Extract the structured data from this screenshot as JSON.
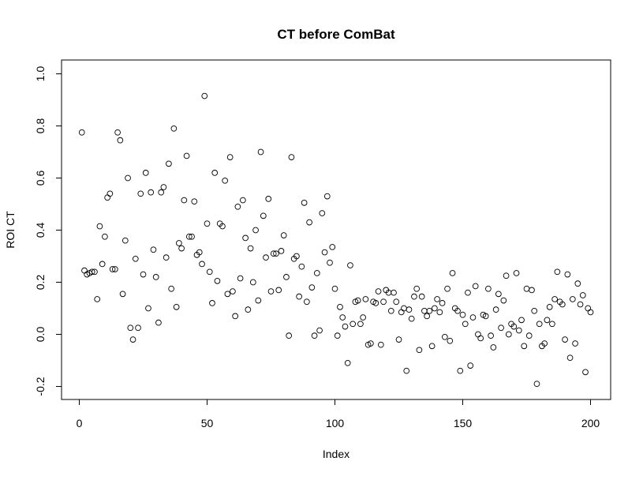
{
  "chart_data": {
    "type": "scatter",
    "title": "CT before ComBat",
    "xlabel": "Index",
    "ylabel": "ROI CT",
    "xlim": [
      0,
      200
    ],
    "ylim": [
      -0.2,
      1.0
    ],
    "x_ticks": [
      0,
      50,
      100,
      150,
      200
    ],
    "x_tick_labels": [
      "0",
      "50",
      "100",
      "150",
      "200"
    ],
    "y_ticks": [
      -0.2,
      0.0,
      0.2,
      0.4,
      0.6,
      0.8,
      1.0
    ],
    "y_tick_labels": [
      "-0.2",
      "0.0",
      "0.2",
      "0.4",
      "0.6",
      "0.8",
      "1.0"
    ],
    "grid": false,
    "legend": "none",
    "marker": "open-circle",
    "x": [
      1,
      2,
      3,
      4,
      5,
      6,
      7,
      8,
      9,
      10,
      11,
      12,
      13,
      14,
      15,
      16,
      17,
      18,
      19,
      20,
      21,
      22,
      23,
      24,
      25,
      26,
      27,
      28,
      29,
      30,
      31,
      32,
      33,
      34,
      35,
      36,
      37,
      38,
      39,
      40,
      41,
      42,
      43,
      44,
      45,
      46,
      47,
      48,
      49,
      50,
      51,
      52,
      53,
      54,
      55,
      56,
      57,
      58,
      59,
      60,
      61,
      62,
      63,
      64,
      65,
      66,
      67,
      68,
      69,
      70,
      71,
      72,
      73,
      74,
      75,
      76,
      77,
      78,
      79,
      80,
      81,
      82,
      83,
      84,
      85,
      86,
      87,
      88,
      89,
      90,
      91,
      92,
      93,
      94,
      95,
      96,
      97,
      98,
      99,
      100,
      101,
      102,
      103,
      104,
      105,
      106,
      107,
      108,
      109,
      110,
      111,
      112,
      113,
      114,
      115,
      116,
      117,
      118,
      119,
      120,
      121,
      122,
      123,
      124,
      125,
      126,
      127,
      128,
      129,
      130,
      131,
      132,
      133,
      134,
      135,
      136,
      137,
      138,
      139,
      140,
      141,
      142,
      143,
      144,
      145,
      146,
      147,
      148,
      149,
      150,
      151,
      152,
      153,
      154,
      155,
      156,
      157,
      158,
      159,
      160,
      161,
      162,
      163,
      164,
      165,
      166,
      167,
      168,
      169,
      170,
      171,
      172,
      173,
      174,
      175,
      176,
      177,
      178,
      179,
      180,
      181,
      182,
      183,
      184,
      185,
      186,
      187,
      188,
      189,
      190,
      191,
      192,
      193,
      194,
      195,
      196,
      197,
      198,
      199,
      200
    ],
    "y": [
      0.775,
      0.245,
      0.23,
      0.235,
      0.24,
      0.24,
      0.135,
      0.415,
      0.27,
      0.375,
      0.525,
      0.54,
      0.25,
      0.25,
      0.775,
      0.745,
      0.155,
      0.36,
      0.6,
      0.025,
      -0.02,
      0.29,
      0.025,
      0.54,
      0.23,
      0.62,
      0.1,
      0.545,
      0.325,
      0.22,
      0.045,
      0.545,
      0.565,
      0.295,
      0.655,
      0.175,
      0.79,
      0.105,
      0.35,
      0.33,
      0.515,
      0.685,
      0.375,
      0.375,
      0.51,
      0.305,
      0.315,
      0.27,
      0.915,
      0.425,
      0.24,
      0.12,
      0.62,
      0.205,
      0.425,
      0.415,
      0.59,
      0.155,
      0.68,
      0.165,
      0.07,
      0.49,
      0.215,
      0.515,
      0.37,
      0.095,
      0.33,
      0.2,
      0.4,
      0.13,
      0.7,
      0.455,
      0.295,
      0.52,
      0.165,
      0.31,
      0.31,
      0.17,
      0.32,
      0.38,
      0.22,
      -0.005,
      0.68,
      0.29,
      0.3,
      0.145,
      0.26,
      0.505,
      0.125,
      0.43,
      0.18,
      -0.005,
      0.235,
      0.015,
      0.465,
      0.315,
      0.53,
      0.275,
      0.335,
      0.175,
      -0.005,
      0.105,
      0.065,
      0.03,
      -0.11,
      0.265,
      0.04,
      0.125,
      0.13,
      0.04,
      0.065,
      0.135,
      -0.04,
      -0.035,
      0.125,
      0.12,
      0.165,
      -0.04,
      0.125,
      0.17,
      0.16,
      0.09,
      0.16,
      0.125,
      -0.02,
      0.085,
      0.1,
      -0.14,
      0.095,
      0.06,
      0.145,
      0.175,
      -0.06,
      0.145,
      0.09,
      0.07,
      0.09,
      -0.045,
      0.1,
      0.135,
      0.085,
      0.12,
      -0.01,
      0.175,
      -0.025,
      0.235,
      0.1,
      0.09,
      -0.14,
      0.075,
      0.04,
      0.16,
      -0.12,
      0.065,
      0.185,
      0.0,
      -0.015,
      0.075,
      0.07,
      0.175,
      -0.005,
      -0.05,
      0.095,
      0.155,
      0.025,
      0.13,
      0.225,
      0.0,
      0.04,
      0.03,
      0.235,
      0.015,
      0.055,
      -0.045,
      0.175,
      -0.005,
      0.17,
      0.09,
      -0.19,
      0.04,
      -0.045,
      -0.035,
      0.055,
      0.105,
      0.04,
      0.135,
      0.24,
      0.125,
      0.115,
      -0.02,
      0.23,
      -0.09,
      0.135,
      -0.035,
      0.195,
      0.115,
      0.15,
      -0.145,
      0.1,
      0.085
    ]
  }
}
